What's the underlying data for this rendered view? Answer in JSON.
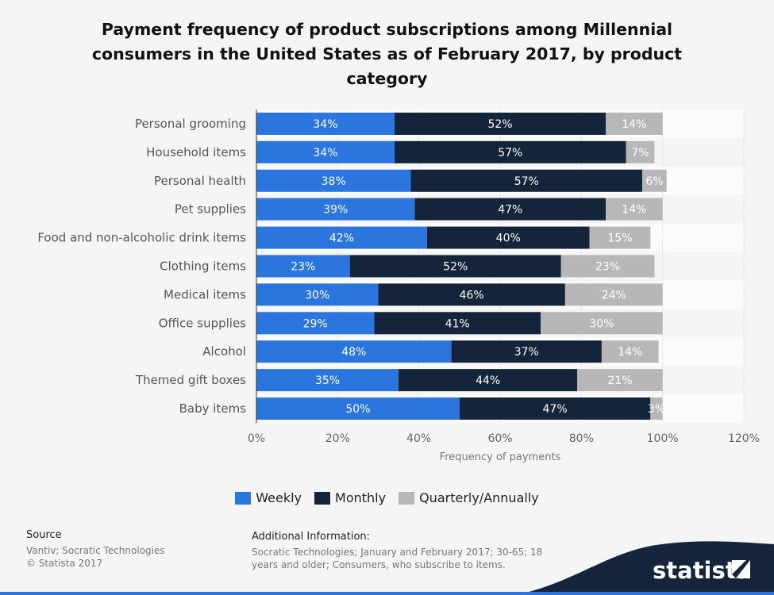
{
  "title": "Payment frequency of product subscriptions among Millennial consumers in the United States as of February 2017, by product category",
  "chart_data": {
    "type": "bar",
    "orientation": "horizontal",
    "stacked": true,
    "categories": [
      "Personal grooming",
      "Household items",
      "Personal health",
      "Pet supplies",
      "Food and non-alcoholic drink items",
      "Clothing items",
      "Medical items",
      "Office supplies",
      "Alcohol",
      "Themed gift boxes",
      "Baby items"
    ],
    "series": [
      {
        "name": "Weekly",
        "color": "#2a75de",
        "values": [
          34,
          34,
          38,
          39,
          42,
          23,
          30,
          29,
          48,
          35,
          50
        ]
      },
      {
        "name": "Monthly",
        "color": "#13243b",
        "values": [
          52,
          57,
          57,
          47,
          40,
          52,
          46,
          41,
          37,
          44,
          47
        ]
      },
      {
        "name": "Quarterly/Annually",
        "color": "#b7b7b7",
        "values": [
          14,
          7,
          6,
          14,
          15,
          23,
          24,
          30,
          14,
          21,
          3
        ]
      }
    ],
    "xlim": [
      0,
      120
    ],
    "xticks": [
      "0%",
      "20%",
      "40%",
      "60%",
      "80%",
      "100%",
      "120%"
    ],
    "xlabel": "Frequency of payments",
    "value_suffix": "%",
    "legend_position": "bottom"
  },
  "legend": {
    "items": [
      {
        "label": "Weekly",
        "color": "#2a75de"
      },
      {
        "label": "Monthly",
        "color": "#13243b"
      },
      {
        "label": "Quarterly/Annually",
        "color": "#b7b7b7"
      }
    ]
  },
  "footer": {
    "source_heading": "Source",
    "source_lines": [
      "Vantiv; Socratic Technologies",
      "© Statista 2017"
    ],
    "info_heading": "Additional Information:",
    "info_text": "Socratic Technologies; January and February 2017; 30-65; 18 years and older; Consumers, who subscribe to items."
  },
  "brand": {
    "name": "statista",
    "color": "#13243b",
    "accent": "#2a75de"
  }
}
